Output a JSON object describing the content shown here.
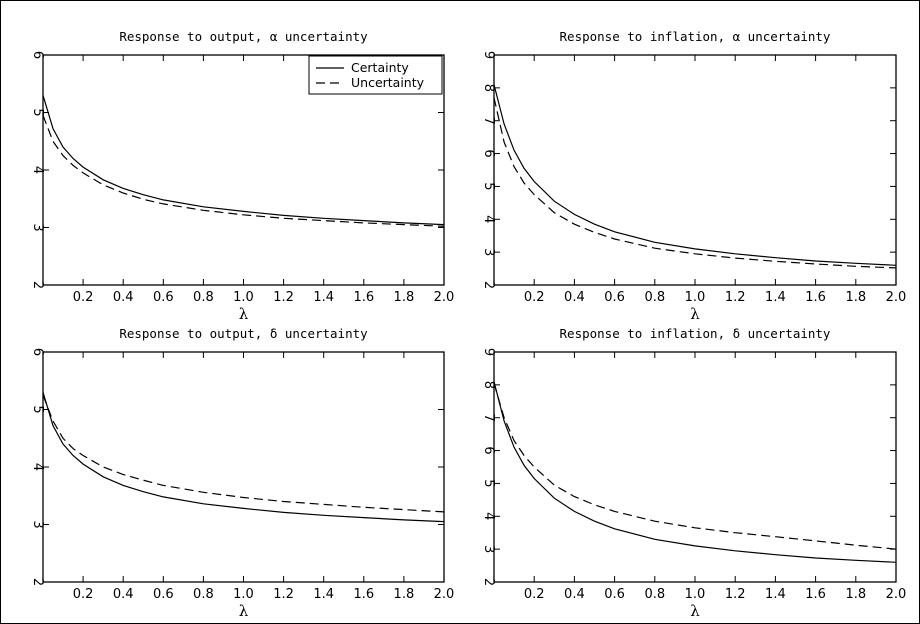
{
  "chart_data": [
    {
      "type": "line",
      "title": "Response to output, α uncertainty",
      "xlabel": "λ",
      "ylabel": "",
      "xlim": [
        0.0,
        2.0
      ],
      "ylim": [
        2,
        6
      ],
      "xticks": [
        "0.2",
        "0.4",
        "0.6",
        "0.8",
        "1.0",
        "1.2",
        "1.4",
        "1.6",
        "1.8",
        "2.0"
      ],
      "yticks": [
        "2",
        "3",
        "4",
        "5",
        "6"
      ],
      "x": [
        0.0,
        0.05,
        0.1,
        0.15,
        0.2,
        0.3,
        0.4,
        0.5,
        0.6,
        0.8,
        1.0,
        1.2,
        1.4,
        1.6,
        1.8,
        2.0
      ],
      "series": [
        {
          "name": "Certainty",
          "style": "solid",
          "values": [
            5.3,
            4.72,
            4.4,
            4.2,
            4.05,
            3.83,
            3.68,
            3.57,
            3.48,
            3.36,
            3.28,
            3.21,
            3.16,
            3.12,
            3.08,
            3.05
          ]
        },
        {
          "name": "Uncertainty",
          "style": "dashed",
          "values": [
            4.95,
            4.5,
            4.25,
            4.08,
            3.95,
            3.74,
            3.6,
            3.49,
            3.41,
            3.3,
            3.22,
            3.16,
            3.12,
            3.08,
            3.05,
            3.02
          ]
        }
      ],
      "legend": {
        "position": "top-right",
        "entries": [
          "Certainty",
          "Uncertainty"
        ]
      },
      "grid": false
    },
    {
      "type": "line",
      "title": "Response to inflation, α uncertainty",
      "xlabel": "λ",
      "ylabel": "",
      "xlim": [
        0.0,
        2.0
      ],
      "ylim": [
        2,
        9
      ],
      "xticks": [
        "0.2",
        "0.4",
        "0.6",
        "0.8",
        "1.0",
        "1.2",
        "1.4",
        "1.6",
        "1.8",
        "2.0"
      ],
      "yticks": [
        "2",
        "3",
        "4",
        "5",
        "6",
        "7",
        "8",
        "9"
      ],
      "x": [
        0.0,
        0.05,
        0.1,
        0.15,
        0.2,
        0.3,
        0.4,
        0.5,
        0.6,
        0.8,
        1.0,
        1.2,
        1.4,
        1.6,
        1.8,
        2.0
      ],
      "series": [
        {
          "style": "solid",
          "values": [
            8.1,
            6.9,
            6.1,
            5.55,
            5.15,
            4.55,
            4.15,
            3.85,
            3.62,
            3.3,
            3.1,
            2.95,
            2.83,
            2.73,
            2.66,
            2.6
          ]
        },
        {
          "style": "dashed",
          "values": [
            7.7,
            6.35,
            5.6,
            5.1,
            4.75,
            4.2,
            3.85,
            3.6,
            3.4,
            3.12,
            2.95,
            2.82,
            2.72,
            2.64,
            2.57,
            2.52
          ]
        }
      ],
      "grid": false
    },
    {
      "type": "line",
      "title": "Response to output, δ uncertainty",
      "xlabel": "λ",
      "ylabel": "",
      "xlim": [
        0.0,
        2.0
      ],
      "ylim": [
        2,
        6
      ],
      "xticks": [
        "0.2",
        "0.4",
        "0.6",
        "0.8",
        "1.0",
        "1.2",
        "1.4",
        "1.6",
        "1.8",
        "2.0"
      ],
      "yticks": [
        "2",
        "3",
        "4",
        "5",
        "6"
      ],
      "x": [
        0.0,
        0.05,
        0.1,
        0.15,
        0.2,
        0.3,
        0.4,
        0.5,
        0.6,
        0.8,
        1.0,
        1.2,
        1.4,
        1.6,
        1.8,
        2.0
      ],
      "series": [
        {
          "style": "solid",
          "values": [
            5.3,
            4.72,
            4.4,
            4.2,
            4.05,
            3.83,
            3.68,
            3.57,
            3.48,
            3.36,
            3.28,
            3.21,
            3.16,
            3.12,
            3.08,
            3.05
          ]
        },
        {
          "style": "dashed",
          "values": [
            5.25,
            4.8,
            4.5,
            4.32,
            4.2,
            4.0,
            3.87,
            3.77,
            3.68,
            3.56,
            3.47,
            3.4,
            3.35,
            3.3,
            3.26,
            3.22
          ]
        }
      ],
      "grid": false
    },
    {
      "type": "line",
      "title": "Response to inflation, δ uncertainty",
      "xlabel": "λ",
      "ylabel": "",
      "xlim": [
        0.0,
        2.0
      ],
      "ylim": [
        2,
        9
      ],
      "xticks": [
        "0.2",
        "0.4",
        "0.6",
        "0.8",
        "1.0",
        "1.2",
        "1.4",
        "1.6",
        "1.8",
        "2.0"
      ],
      "yticks": [
        "2",
        "3",
        "4",
        "5",
        "6",
        "7",
        "8",
        "9"
      ],
      "x": [
        0.0,
        0.05,
        0.1,
        0.15,
        0.2,
        0.3,
        0.4,
        0.5,
        0.6,
        0.8,
        1.0,
        1.2,
        1.4,
        1.6,
        1.8,
        2.0
      ],
      "series": [
        {
          "style": "solid",
          "values": [
            8.1,
            6.9,
            6.1,
            5.55,
            5.15,
            4.55,
            4.15,
            3.85,
            3.62,
            3.3,
            3.1,
            2.95,
            2.83,
            2.73,
            2.66,
            2.6
          ]
        },
        {
          "style": "dashed",
          "values": [
            8.05,
            7.0,
            6.3,
            5.85,
            5.5,
            4.95,
            4.6,
            4.35,
            4.15,
            3.85,
            3.65,
            3.5,
            3.38,
            3.25,
            3.12,
            3.0
          ]
        }
      ],
      "grid": false
    }
  ]
}
